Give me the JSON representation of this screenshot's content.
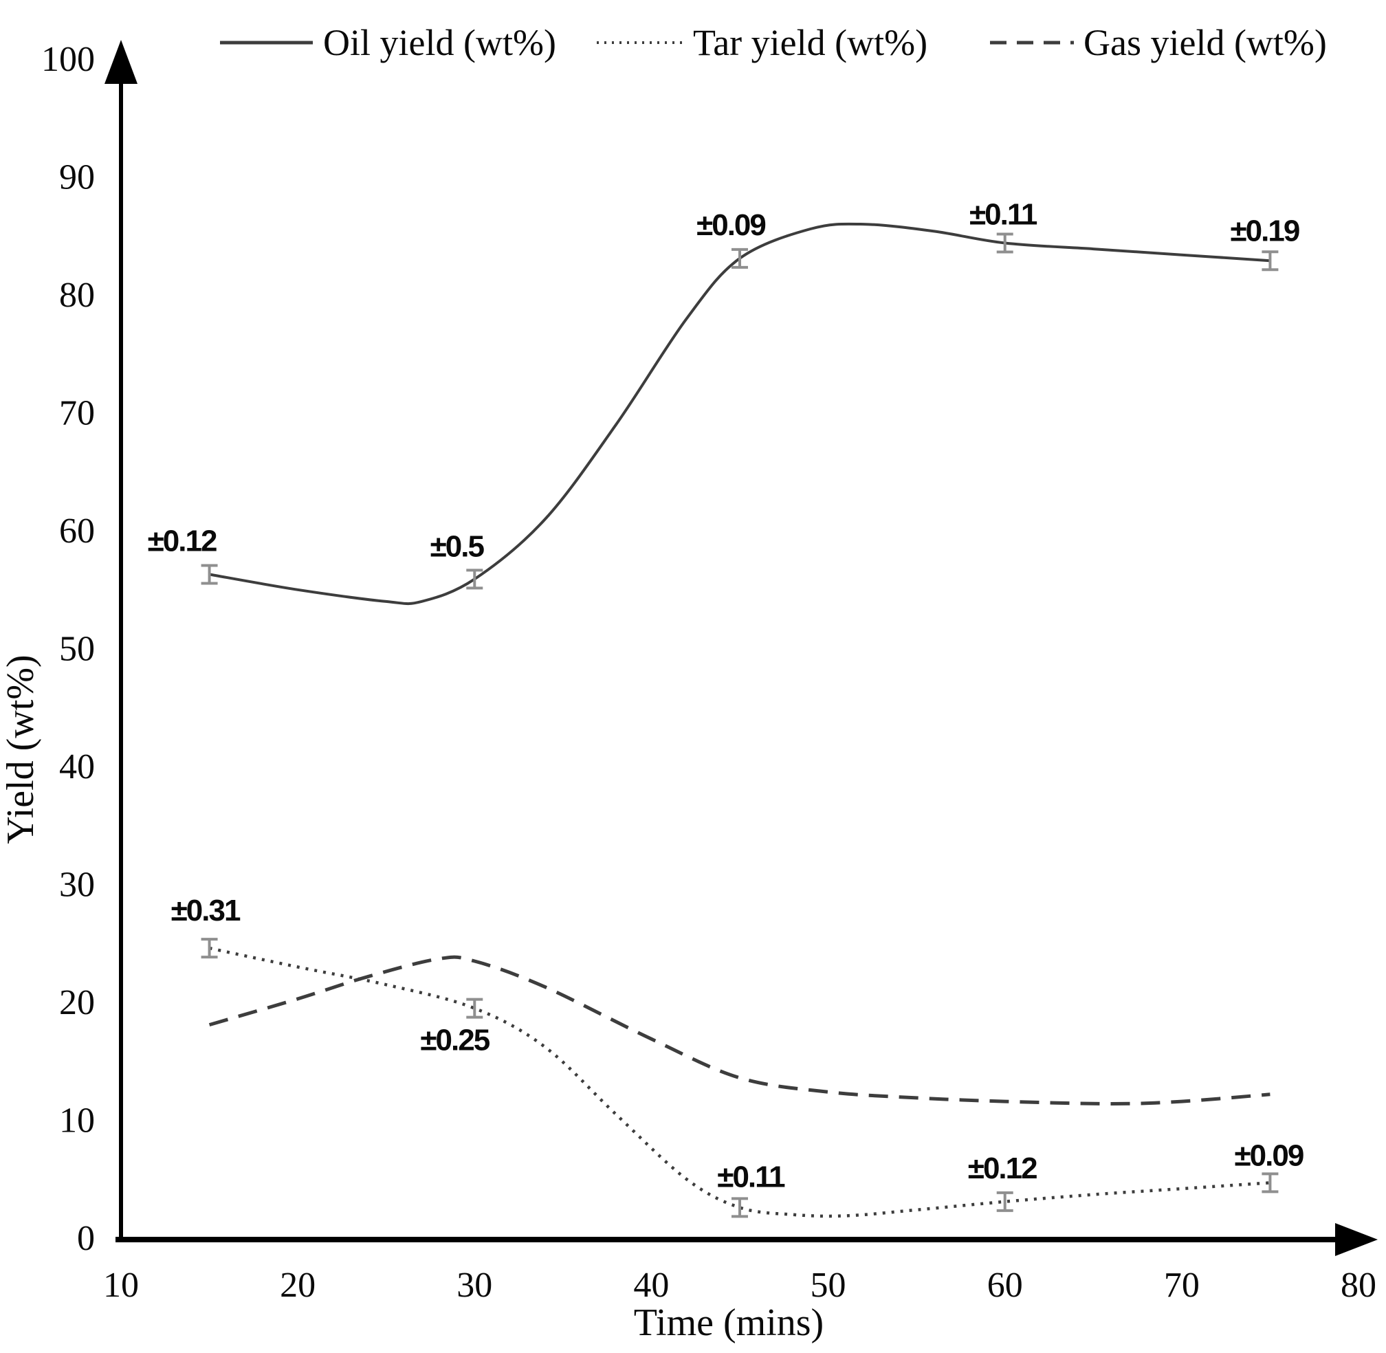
{
  "page": {
    "background": "#ffffff",
    "text_color": "#1a1a1a"
  },
  "chart_data": {
    "type": "line",
    "title": "",
    "xlabel": "Time (mins)",
    "ylabel": "Yield (wt%)",
    "xlim": [
      10,
      80
    ],
    "ylim": [
      0,
      100
    ],
    "x_ticks": [
      10,
      20,
      30,
      40,
      50,
      60,
      70,
      80
    ],
    "y_ticks": [
      0,
      10,
      20,
      30,
      40,
      50,
      60,
      70,
      80,
      90,
      100
    ],
    "grid": false,
    "legend_position": "top",
    "colors": {
      "axis": "#000000",
      "line": "#3d3d3d",
      "error_bar": "#8f8f8f",
      "label": "#0a0a0a"
    },
    "series": [
      {
        "name": "Oil yield (wt%)",
        "style": "solid",
        "x": [
          15,
          30,
          45,
          60,
          75
        ],
        "values": [
          56.3,
          55.9,
          83.1,
          84.4,
          82.9
        ],
        "error_labels": [
          "±0.12",
          "±0.5",
          "±0.09",
          "±0.11",
          "±0.19"
        ],
        "label_offsets": [
          [
            -40,
            -48
          ],
          [
            -26,
            -47
          ],
          [
            -13,
            -48
          ],
          [
            -3,
            -41
          ],
          [
            -8,
            -43
          ]
        ],
        "curve": [
          [
            15,
            56.3
          ],
          [
            20,
            55.0
          ],
          [
            25,
            54.0
          ],
          [
            27,
            54.0
          ],
          [
            30,
            55.9
          ],
          [
            34,
            61.0
          ],
          [
            38,
            69.0
          ],
          [
            42,
            78.0
          ],
          [
            45,
            83.1
          ],
          [
            49,
            85.6
          ],
          [
            52,
            86.0
          ],
          [
            56,
            85.4
          ],
          [
            60,
            84.4
          ],
          [
            65,
            83.9
          ],
          [
            70,
            83.4
          ],
          [
            75,
            82.9
          ]
        ]
      },
      {
        "name": "Tar yield (wt%)",
        "style": "dotted",
        "x": [
          15,
          30,
          45,
          60,
          75
        ],
        "values": [
          24.6,
          19.5,
          2.6,
          3.1,
          4.7
        ],
        "error_labels": [
          "±0.31",
          "±0.25",
          "±0.11",
          "±0.12",
          "±0.09"
        ],
        "label_offsets": [
          [
            -6,
            -54
          ],
          [
            -29,
            47
          ],
          [
            16,
            -44
          ],
          [
            -4,
            -48
          ],
          [
            -2,
            -39
          ]
        ],
        "curve": [
          [
            15,
            24.6
          ],
          [
            20,
            23.0
          ],
          [
            25,
            21.5
          ],
          [
            30,
            19.5
          ],
          [
            34,
            16.2
          ],
          [
            38,
            10.5
          ],
          [
            42,
            5.0
          ],
          [
            45,
            2.6
          ],
          [
            48,
            2.0
          ],
          [
            51,
            1.9
          ],
          [
            55,
            2.4
          ],
          [
            60,
            3.1
          ],
          [
            65,
            3.7
          ],
          [
            70,
            4.2
          ],
          [
            75,
            4.7
          ]
        ]
      },
      {
        "name": "Gas yield (wt%)",
        "style": "dashed",
        "x": [],
        "values": [],
        "error_labels": [],
        "label_offsets": [],
        "curve": [
          [
            15,
            18.1
          ],
          [
            20,
            20.3
          ],
          [
            24,
            22.2
          ],
          [
            28,
            23.7
          ],
          [
            30,
            23.5
          ],
          [
            34,
            21.3
          ],
          [
            40,
            16.9
          ],
          [
            45,
            13.6
          ],
          [
            50,
            12.4
          ],
          [
            55,
            11.9
          ],
          [
            60,
            11.6
          ],
          [
            66,
            11.4
          ],
          [
            70,
            11.6
          ],
          [
            75,
            12.2
          ]
        ]
      }
    ]
  }
}
